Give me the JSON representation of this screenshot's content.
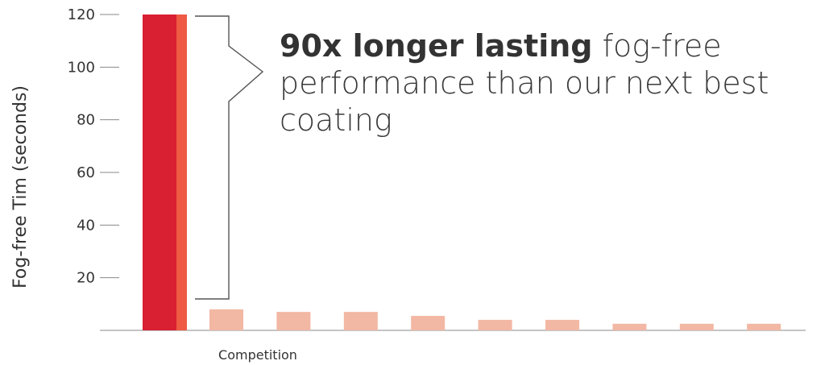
{
  "chart_data": {
    "type": "bar",
    "ylabel": "Fog-free Tim  (seconds)",
    "xlabel": "Competition",
    "ylim": [
      0,
      120
    ],
    "yticks": [
      20,
      40,
      60,
      80,
      100,
      120
    ],
    "grid": false,
    "legend": "none",
    "annotation": {
      "bold": "90x longer lasting",
      "rest": " fog-free performance than our next best coating"
    },
    "featured": {
      "values": [
        120,
        120
      ]
    },
    "competition": {
      "values": [
        8,
        7,
        7,
        5.5,
        4,
        4,
        2.5,
        2.5,
        2.5
      ]
    },
    "colors": {
      "featured_primary": "#d91f32",
      "featured_secondary": "#ee5a43",
      "competition": "#f2b8a4",
      "axis": "#888888",
      "bracket": "#555555"
    }
  }
}
